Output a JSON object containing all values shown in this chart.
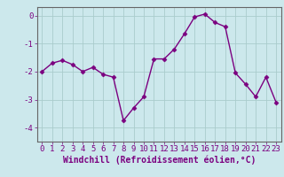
{
  "x": [
    0,
    1,
    2,
    3,
    4,
    5,
    6,
    7,
    8,
    9,
    10,
    11,
    12,
    13,
    14,
    15,
    16,
    17,
    18,
    19,
    20,
    21,
    22,
    23
  ],
  "y": [
    -2.0,
    -1.7,
    -1.6,
    -1.75,
    -2.0,
    -1.85,
    -2.1,
    -2.2,
    -3.75,
    -3.3,
    -2.9,
    -1.55,
    -1.55,
    -1.2,
    -0.65,
    -0.05,
    0.05,
    -0.25,
    -0.4,
    -2.05,
    -2.45,
    -2.9,
    -2.2,
    -3.1
  ],
  "line_color": "#7b0080",
  "marker": "D",
  "marker_size": 2.5,
  "bg_color": "#cce8ec",
  "grid_color": "#aacccc",
  "xlabel": "Windchill (Refroidissement éolien,°C)",
  "ylabel": "",
  "ylim": [
    -4.5,
    0.3
  ],
  "xlim": [
    -0.5,
    23.5
  ],
  "yticks": [
    0,
    -1,
    -2,
    -3,
    -4
  ],
  "xticks": [
    0,
    1,
    2,
    3,
    4,
    5,
    6,
    7,
    8,
    9,
    10,
    11,
    12,
    13,
    14,
    15,
    16,
    17,
    18,
    19,
    20,
    21,
    22,
    23
  ],
  "xlabel_fontsize": 7,
  "tick_fontsize": 6.5,
  "line_width": 1.0,
  "axis_color": "#888888",
  "spine_color": "#666666"
}
